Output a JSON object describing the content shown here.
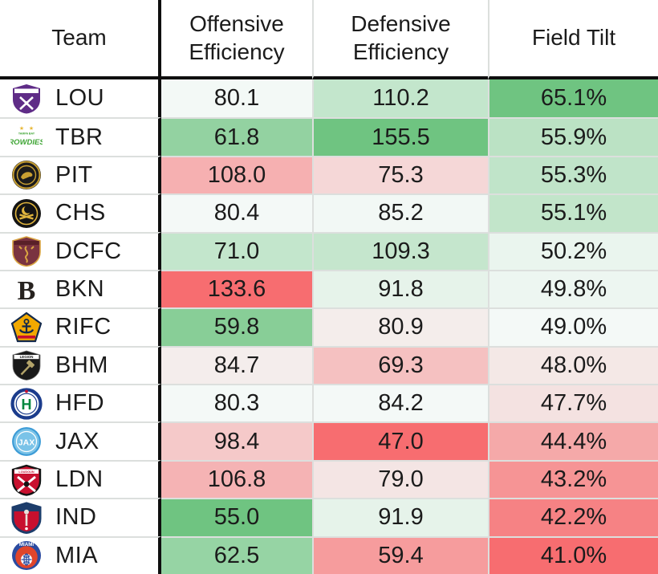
{
  "columns": [
    "Team",
    "Offensive Efficiency",
    "Defensive Efficiency",
    "Field Tilt"
  ],
  "scale_colors": {
    "green": "#6FC481",
    "mid_white": "#F4F9F7",
    "red": "#F76D70"
  },
  "line_colors": {
    "black_divider": "#0F0F0F",
    "gray_separator": "#DCDFDD",
    "text": "#1B1B1B"
  },
  "rows": [
    {
      "team": "LOU",
      "logo": {
        "name": "louisville-city-logo",
        "fill": "#5F2C87",
        "accent": "#FFFFFF"
      },
      "off": {
        "value": "80.1",
        "bg": "#F3F9F6"
      },
      "def": {
        "value": "110.2",
        "bg": "#C3E6CC"
      },
      "tilt": {
        "value": "65.1%",
        "bg": "#6FC481"
      }
    },
    {
      "team": "TBR",
      "logo": {
        "name": "tampa-bay-rowdies-logo",
        "fill": "#3FA535",
        "accent": "#E8B838"
      },
      "off": {
        "value": "61.8",
        "bg": "#93D2A1"
      },
      "def": {
        "value": "155.5",
        "bg": "#6FC481"
      },
      "tilt": {
        "value": "55.9%",
        "bg": "#BBE2C4"
      }
    },
    {
      "team": "PIT",
      "logo": {
        "name": "pittsburgh-riverhounds-logo",
        "fill": "#1B1B1B",
        "accent": "#C9A032"
      },
      "off": {
        "value": "108.0",
        "bg": "#F6B0B1"
      },
      "def": {
        "value": "75.3",
        "bg": "#F5D7D7"
      },
      "tilt": {
        "value": "55.3%",
        "bg": "#C0E4C9"
      }
    },
    {
      "team": "CHS",
      "logo": {
        "name": "charleston-battery-logo",
        "fill": "#141414",
        "accent": "#E0B53E"
      },
      "off": {
        "value": "80.4",
        "bg": "#F4F9F7"
      },
      "def": {
        "value": "85.2",
        "bg": "#F2F8F5"
      },
      "tilt": {
        "value": "55.1%",
        "bg": "#C2E5CA"
      }
    },
    {
      "team": "DCFC",
      "logo": {
        "name": "detroit-city-fc-logo",
        "fill": "#7A3340",
        "accent": "#D9A441"
      },
      "off": {
        "value": "71.0",
        "bg": "#C3E6CC"
      },
      "def": {
        "value": "109.3",
        "bg": "#C5E6CD"
      },
      "tilt": {
        "value": "50.2%",
        "bg": "#EAF5EE"
      }
    },
    {
      "team": "BKN",
      "logo": {
        "name": "brooklyn-fc-logo",
        "fill": "#EFECE4",
        "accent": "#26221F"
      },
      "off": {
        "value": "133.6",
        "bg": "#F76D70"
      },
      "def": {
        "value": "91.8",
        "bg": "#E6F3EA"
      },
      "tilt": {
        "value": "49.8%",
        "bg": "#EDF6F1"
      }
    },
    {
      "team": "RIFC",
      "logo": {
        "name": "rhode-island-fc-logo",
        "fill": "#F2A900",
        "accent": "#13294B"
      },
      "off": {
        "value": "59.8",
        "bg": "#88CE97"
      },
      "def": {
        "value": "80.9",
        "bg": "#F4EDEB"
      },
      "tilt": {
        "value": "49.0%",
        "bg": "#F4F9F7"
      }
    },
    {
      "team": "BHM",
      "logo": {
        "name": "birmingham-legion-logo",
        "fill": "#191919",
        "accent": "#B3A369"
      },
      "off": {
        "value": "84.7",
        "bg": "#F4EDEC"
      },
      "def": {
        "value": "69.3",
        "bg": "#F5C1C1"
      },
      "tilt": {
        "value": "48.0%",
        "bg": "#F4E8E6"
      }
    },
    {
      "team": "HFD",
      "logo": {
        "name": "hartford-athletic-logo",
        "fill": "#FFFFFF",
        "accent": "#1B3C8C",
        "glyph_color": "#00873E"
      },
      "off": {
        "value": "80.3",
        "bg": "#F4F9F7"
      },
      "def": {
        "value": "84.2",
        "bg": "#F4F9F7"
      },
      "tilt": {
        "value": "47.7%",
        "bg": "#F4E2E1"
      }
    },
    {
      "team": "JAX",
      "logo": {
        "name": "jacksonville-logo",
        "fill": "#7AC3E8",
        "accent": "#3D9BD6"
      },
      "off": {
        "value": "98.4",
        "bg": "#F5C9C9"
      },
      "def": {
        "value": "47.0",
        "bg": "#F76D70"
      },
      "tilt": {
        "value": "44.4%",
        "bg": "#F5A9A9"
      }
    },
    {
      "team": "LDN",
      "logo": {
        "name": "loudoun-united-logo",
        "fill": "#C8102E",
        "accent": "#141414"
      },
      "off": {
        "value": "106.8",
        "bg": "#F5B3B4"
      },
      "def": {
        "value": "79.0",
        "bg": "#F4E5E4"
      },
      "tilt": {
        "value": "43.2%",
        "bg": "#F69495"
      }
    },
    {
      "team": "IND",
      "logo": {
        "name": "indy-eleven-logo",
        "fill": "#C8102E",
        "accent": "#1D3D6B"
      },
      "off": {
        "value": "55.0",
        "bg": "#6FC481"
      },
      "def": {
        "value": "91.9",
        "bg": "#E6F3EA"
      },
      "tilt": {
        "value": "42.2%",
        "bg": "#F68284"
      }
    },
    {
      "team": "MIA",
      "logo": {
        "name": "miami-fc-logo",
        "fill": "#E0452B",
        "accent": "#2B4BA0"
      },
      "off": {
        "value": "62.5",
        "bg": "#96D4A4"
      },
      "def": {
        "value": "59.4",
        "bg": "#F69C9D"
      },
      "tilt": {
        "value": "41.0%",
        "bg": "#F76D70"
      }
    }
  ],
  "chart_data": {
    "type": "table",
    "title": "",
    "columns": [
      "Team",
      "Offensive Efficiency",
      "Defensive Efficiency",
      "Field Tilt"
    ],
    "teams": [
      "LOU",
      "TBR",
      "PIT",
      "CHS",
      "DCFC",
      "BKN",
      "RIFC",
      "BHM",
      "HFD",
      "JAX",
      "LDN",
      "IND",
      "MIA"
    ],
    "offensive_efficiency": [
      80.1,
      61.8,
      108.0,
      80.4,
      71.0,
      133.6,
      59.8,
      84.7,
      80.3,
      98.4,
      106.8,
      55.0,
      62.5
    ],
    "defensive_efficiency": [
      110.2,
      155.5,
      75.3,
      85.2,
      109.3,
      91.8,
      80.9,
      69.3,
      84.2,
      47.0,
      79.0,
      91.9,
      59.4
    ],
    "field_tilt_pct": [
      65.1,
      55.9,
      55.3,
      55.1,
      50.2,
      49.8,
      49.0,
      48.0,
      47.7,
      44.4,
      43.2,
      42.2,
      41.0
    ],
    "layout": "heatmap-colored table, red-white-green diverging scale per column; low offensive efficiency = green, high defensive efficiency = green, high field tilt = green; sorted by field tilt descending"
  }
}
